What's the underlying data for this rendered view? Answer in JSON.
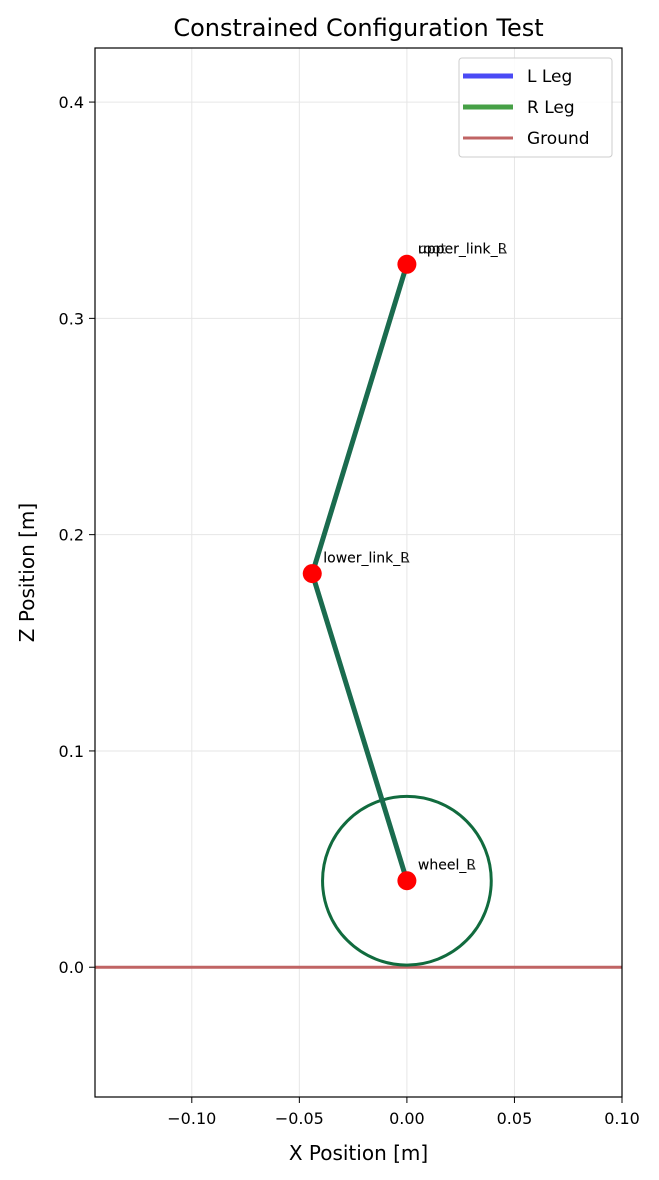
{
  "chart_data": {
    "type": "line",
    "title": "Constrained Configuration Test",
    "xlabel": "X Position [m]",
    "ylabel": "Z Position [m]",
    "xlim": [
      -0.145,
      0.1
    ],
    "ylim": [
      -0.06,
      0.425
    ],
    "xticks": [
      -0.1,
      -0.05,
      0.0,
      0.05,
      0.1
    ],
    "xtick_labels": [
      "−0.10",
      "−0.05",
      "0.00",
      "0.05",
      "0.10"
    ],
    "yticks": [
      0.0,
      0.1,
      0.2,
      0.3,
      0.4
    ],
    "ytick_labels": [
      "0.0",
      "0.1",
      "0.2",
      "0.3",
      "0.4"
    ],
    "grid": true,
    "legend_position": "top-right",
    "series": [
      {
        "name": "L Leg",
        "color": "#4a4af5",
        "x": [
          0.0,
          -0.044,
          0.0
        ],
        "z": [
          0.325,
          0.182,
          0.04
        ]
      },
      {
        "name": "R Leg",
        "color": "#46a046",
        "x": [
          0.0,
          -0.044,
          0.0
        ],
        "z": [
          0.325,
          0.182,
          0.04
        ]
      },
      {
        "name": "Ground",
        "color": "#c06464",
        "x": [
          -0.145,
          0.1
        ],
        "z": [
          0.0,
          0.0
        ]
      }
    ],
    "overlap_color": "#1a6b4e",
    "wheel": {
      "center_x": 0.0,
      "center_z": 0.04,
      "radius": 0.039,
      "color": "#116b3e"
    },
    "joints": {
      "color": "#ff0000",
      "points": [
        {
          "x": 0.0,
          "z": 0.325,
          "labels": [
            "upper_link_L",
            "upper_link_R",
            "root"
          ]
        },
        {
          "x": -0.044,
          "z": 0.182,
          "labels": [
            "lower_link_L",
            "lower_link_R"
          ]
        },
        {
          "x": 0.0,
          "z": 0.04,
          "labels": [
            "wheel_L",
            "wheel_R"
          ]
        }
      ]
    }
  }
}
